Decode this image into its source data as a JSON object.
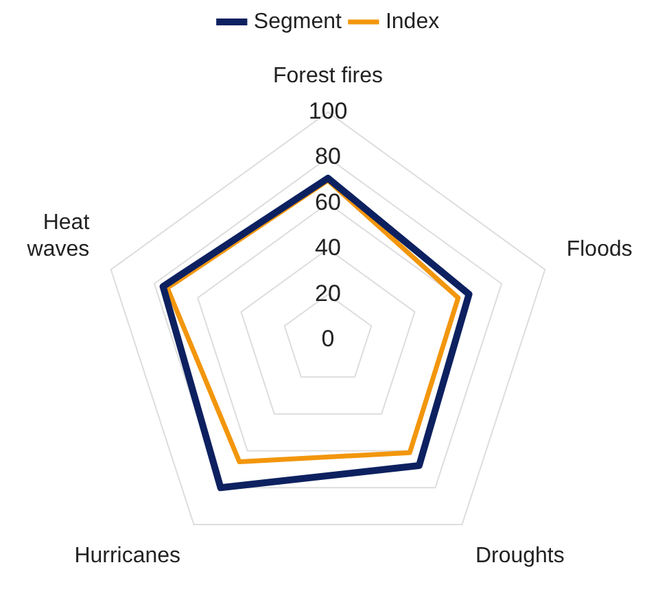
{
  "chart_data": {
    "type": "radar",
    "categories": [
      "Forest fires",
      "Floods",
      "Droughts",
      "Hurricanes",
      "Heat waves"
    ],
    "series": [
      {
        "name": "Segment",
        "color": "#0d2160",
        "values": [
          71,
          65,
          68,
          80,
          76
        ]
      },
      {
        "name": "Index",
        "color": "#f2960c",
        "values": [
          70,
          60,
          61,
          66,
          74
        ]
      }
    ],
    "ylim": [
      0,
      100
    ],
    "yticks": [
      0,
      20,
      40,
      60,
      80,
      100
    ],
    "grid": true,
    "legend": "top",
    "marker": "none",
    "line_style": "solid"
  }
}
